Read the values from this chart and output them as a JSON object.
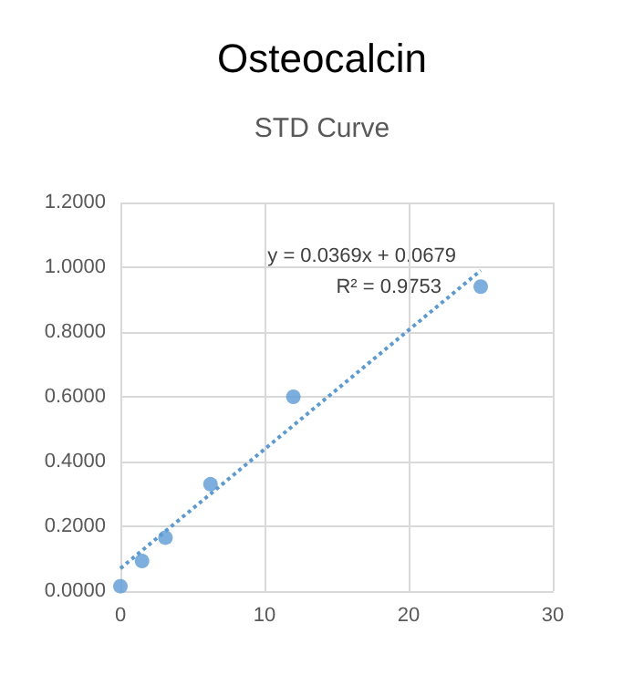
{
  "chart_data": {
    "type": "scatter",
    "title": "Osteocalcin",
    "subtitle": "STD Curve",
    "series": [
      {
        "color": "#5b9bd5",
        "x": [
          0,
          1.5,
          3.125,
          6.25,
          12,
          25
        ],
        "values": [
          0.015,
          0.093,
          0.165,
          0.33,
          0.6,
          0.94
        ],
        "marker": "circle"
      },
      {
        "type": "line",
        "color": "#5b9bd5",
        "x": [
          0,
          25
        ],
        "values": [
          0.07,
          0.99
        ],
        "line_style": "dotted",
        "marker": "none"
      }
    ],
    "annotations": [
      "y = 0.0369x + 0.0679",
      "R² = 0.9753"
    ],
    "xlim": [
      0,
      30
    ],
    "xticks": [
      0,
      10,
      20,
      30
    ],
    "ylim": [
      0,
      1.2
    ],
    "yticks": [
      {
        "value": 0,
        "label": "0.0000"
      },
      {
        "value": 0.2,
        "label": "0.2000"
      },
      {
        "value": 0.4,
        "label": "0.4000"
      },
      {
        "value": 0.6,
        "label": "0.6000"
      },
      {
        "value": 0.8,
        "label": "0.8000"
      },
      {
        "value": 1,
        "label": "1.0000"
      },
      {
        "value": 1.2,
        "label": "1.2000"
      }
    ],
    "grid": true
  }
}
